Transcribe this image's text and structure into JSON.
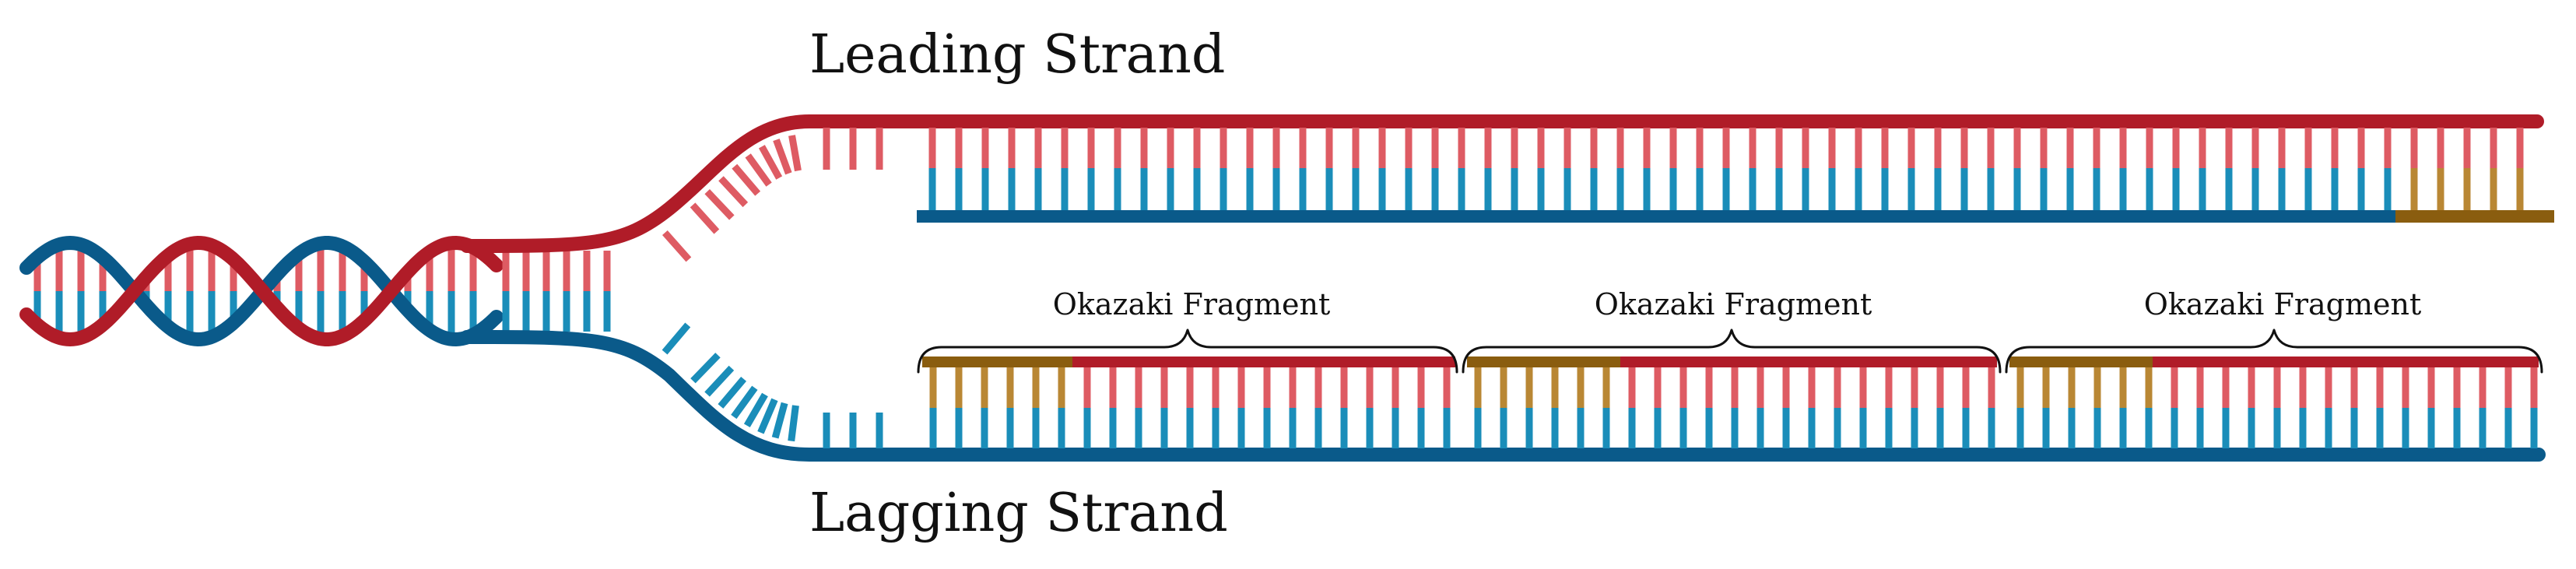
{
  "labels": {
    "leading_strand": "Leading Strand",
    "lagging_strand": "Lagging Strand"
  },
  "fragments": [
    {
      "label": "Okazaki Fragment"
    },
    {
      "label": "Okazaki Fragment"
    },
    {
      "label": "Okazaki Fragment"
    }
  ],
  "colors": {
    "template_red": "#b01c28",
    "base_red": "#de5b63",
    "template_blue": "#0a5a8a",
    "base_blue": "#1a8db9",
    "primer_dark": "#8a5d0f",
    "primer_base": "#b98734"
  }
}
